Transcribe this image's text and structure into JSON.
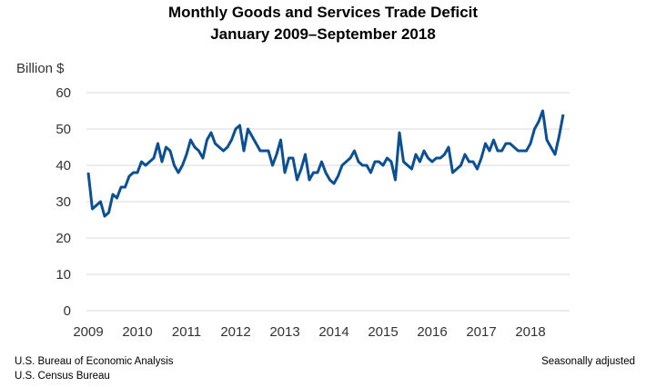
{
  "chart_data": {
    "type": "line",
    "title": "Monthly Goods and Services Trade Deficit",
    "subtitle": "January 2009–September 2018",
    "ylabel": "Billion $",
    "xlabel": "",
    "ylim": [
      0,
      60
    ],
    "yticks": [
      0,
      10,
      20,
      30,
      40,
      50,
      60
    ],
    "xticks": [
      "2009",
      "2010",
      "2011",
      "2012",
      "2013",
      "2014",
      "2015",
      "2016",
      "2017",
      "2018"
    ],
    "grid": true,
    "color": "#0b4f94",
    "start": "2009-01",
    "end": "2018-09",
    "frequency": "monthly",
    "series": [
      {
        "values": [
          38,
          28,
          29,
          30,
          26,
          27,
          32,
          31,
          34,
          34,
          37,
          38,
          38,
          41,
          40,
          41,
          42,
          46,
          41,
          45,
          44,
          40,
          38,
          40,
          43,
          47,
          45,
          44,
          42,
          47,
          49,
          46,
          45,
          44,
          45,
          47,
          50,
          51,
          44,
          50,
          48,
          46,
          44,
          44,
          44,
          40,
          43,
          47,
          38,
          42,
          42,
          36,
          39,
          43,
          36,
          38,
          38,
          41,
          38,
          36,
          35,
          37,
          40,
          41,
          42,
          44,
          41,
          40,
          40,
          38,
          41,
          41,
          40,
          42,
          41,
          36,
          49,
          41,
          40,
          39,
          43,
          41,
          44,
          42,
          41,
          42,
          42,
          43,
          45,
          38,
          39,
          40,
          43,
          41,
          41,
          39,
          42,
          46,
          44,
          47,
          44,
          44,
          46,
          46,
          45,
          44,
          44,
          44,
          46,
          50,
          52,
          55,
          47,
          45,
          43,
          48,
          54
        ]
      }
    ]
  },
  "footer": {
    "source_line1": "U.S. Bureau of Economic Analysis",
    "source_line2": "U.S. Census Bureau",
    "note": "Seasonally adjusted"
  }
}
